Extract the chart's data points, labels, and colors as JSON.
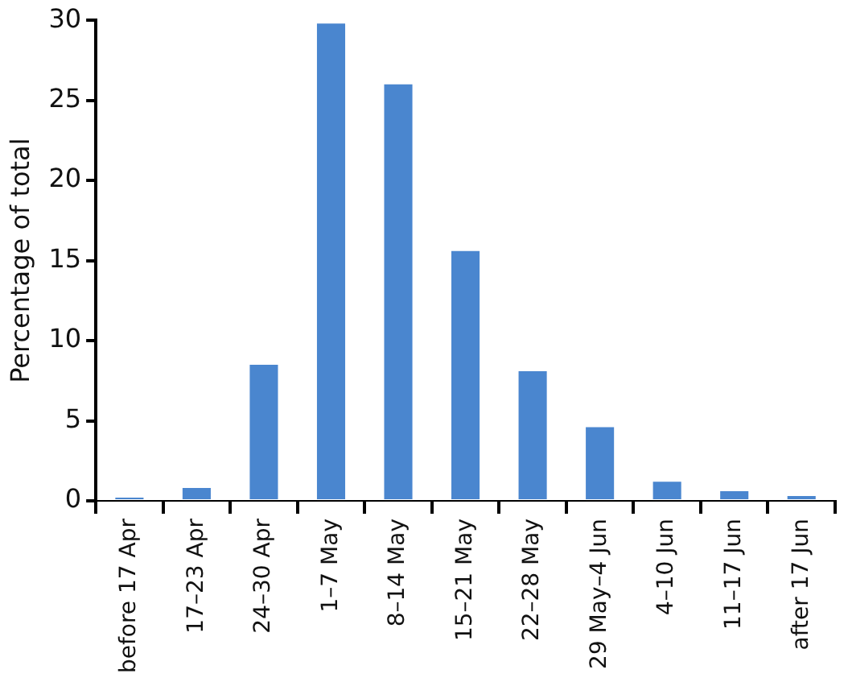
{
  "chart_data": {
    "type": "bar",
    "ylabel": "Percentage of total",
    "categories": [
      "before 17 Apr",
      "17–23 Apr",
      "24–30 Apr",
      "1–7 May",
      "8–14 May",
      "15–21 May",
      "22–28 May",
      "29 May–4 Jun",
      "4–10 Jun",
      "11–17 Jun",
      "after 17 Jun"
    ],
    "values": [
      0.2,
      0.8,
      8.5,
      29.8,
      26.0,
      15.6,
      8.1,
      4.6,
      1.2,
      0.6,
      0.3
    ],
    "color": "#4a86cf",
    "ylim": [
      0,
      30
    ],
    "yticks": [
      0,
      5,
      10,
      15,
      20,
      25,
      30
    ],
    "grid": false,
    "legend": false
  }
}
